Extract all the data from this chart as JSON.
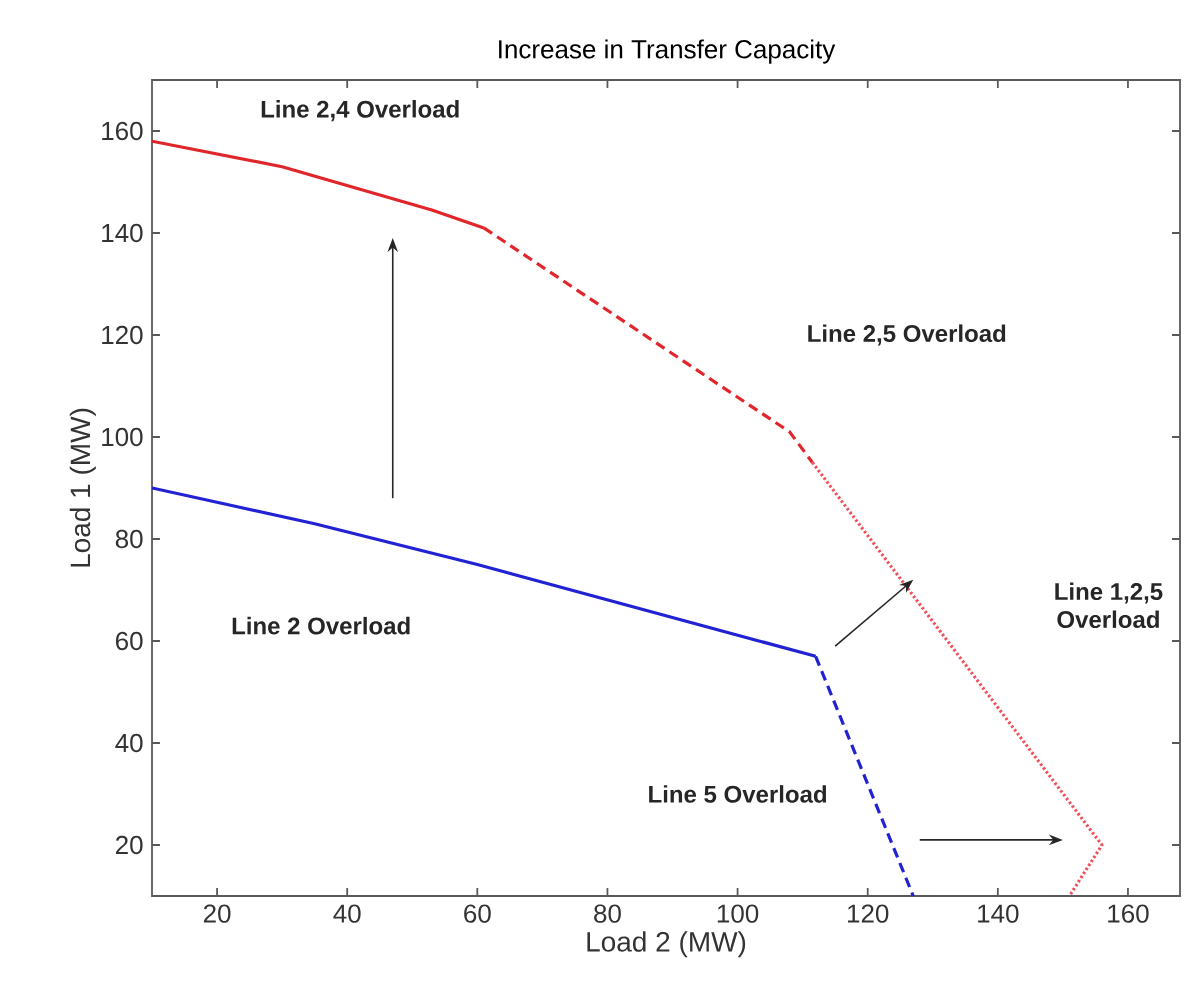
{
  "chart_data": {
    "type": "line",
    "title": "Increase in Transfer Capacity",
    "xlabel": "Load 2 (MW)",
    "ylabel": "Load 1 (MW)",
    "xlim": [
      10,
      168
    ],
    "ylim": [
      10,
      170
    ],
    "xticks": [
      20,
      40,
      60,
      80,
      100,
      120,
      140,
      160
    ],
    "yticks": [
      20,
      40,
      60,
      80,
      100,
      120,
      140,
      160
    ],
    "grid": false,
    "marker": "none",
    "series": [
      {
        "color": "#e0262b",
        "line_style": "solid",
        "x": [
          10,
          30,
          53,
          61
        ],
        "values": [
          158,
          153,
          144.5,
          141
        ]
      },
      {
        "color": "#e0262b",
        "line_style": "dashed",
        "x": [
          61,
          108,
          111.5
        ],
        "values": [
          141,
          101,
          95
        ]
      },
      {
        "color": "#f0505a",
        "line_style": "dotted",
        "x": [
          111.5,
          156,
          151
        ],
        "values": [
          95,
          20,
          10
        ]
      },
      {
        "color": "#2222d4",
        "line_style": "solid",
        "x": [
          10,
          35,
          60,
          112
        ],
        "values": [
          90,
          83,
          75,
          57
        ]
      },
      {
        "color": "#2222d4",
        "line_style": "dashed",
        "x": [
          112,
          127
        ],
        "values": [
          57,
          10
        ]
      }
    ],
    "annotations": [
      "Line 2,4 Overload",
      "Line 2,5 Overload",
      "Line 1,2,5\nOverload",
      "Line 2 Overload",
      "Line 5 Overload"
    ]
  }
}
